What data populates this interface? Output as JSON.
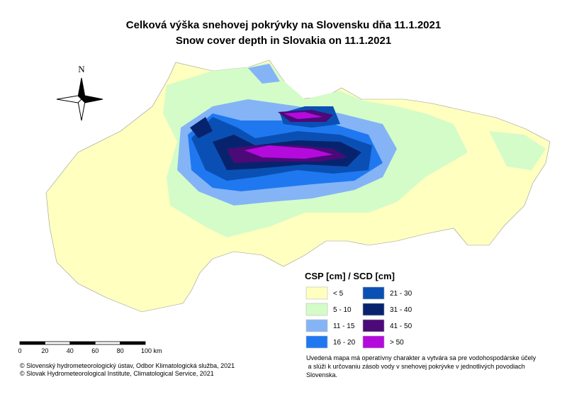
{
  "title": {
    "sk": "Celková výška snehovej pokrývky na Slovensku dňa 11.1.2021",
    "en": "Snow cover depth in Slovakia on 11.1.2021"
  },
  "north": "N",
  "legend": {
    "title": "CSP [cm] / SCD [cm]",
    "items": [
      {
        "label": "< 5",
        "color": "#ffffc0"
      },
      {
        "label": "5 - 10",
        "color": "#d4fcc8"
      },
      {
        "label": "11 - 15",
        "color": "#84b4f6"
      },
      {
        "label": "16 - 20",
        "color": "#1f78f0"
      },
      {
        "label": "21 - 30",
        "color": "#0a50b4"
      },
      {
        "label": "31 - 40",
        "color": "#08236e"
      },
      {
        "label": "41 - 50",
        "color": "#4b0a78"
      },
      {
        "label": "> 50",
        "color": "#b40adc"
      }
    ]
  },
  "scale_bar": {
    "labels": [
      "0",
      "20",
      "40",
      "60",
      "80",
      "100 km"
    ]
  },
  "credits": [
    "© Slovenský hydrometeorologický ústav, Odbor Klimatologická služba, 2021",
    "© Slovak Hydrometeorological Institute, Climatological Service, 2021"
  ],
  "note": [
    "Uvedená mapa má operatívny charakter a vytvára sa pre vodohospodárske účely",
    " a slúži k určovaniu zásob vody v snehovej pokrývke v jednotlivých povodiach",
    "Slovenska."
  ]
}
